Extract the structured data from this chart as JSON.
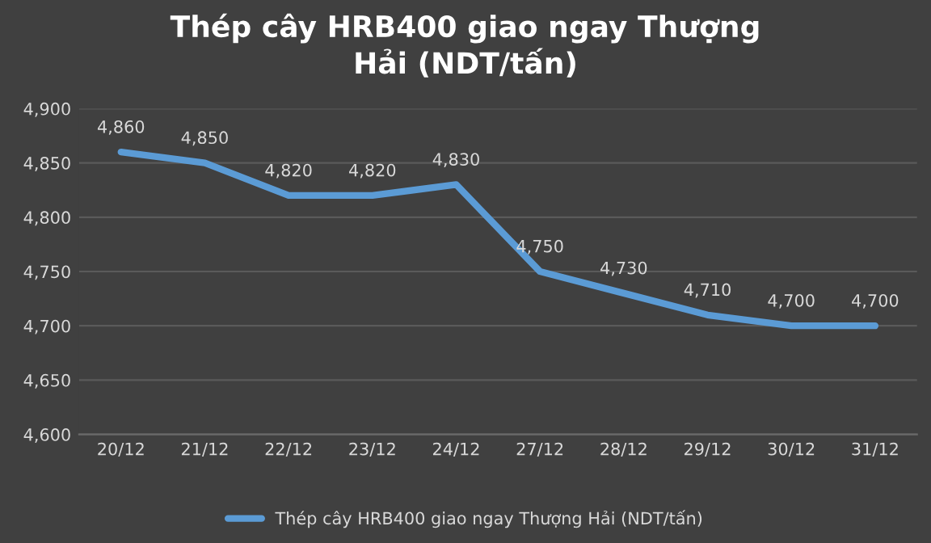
{
  "chart_data": {
    "type": "line",
    "title": "Thép cây HRB400 giao ngay Thượng\nHải (NDT/tấn)",
    "categories": [
      "20/12",
      "21/12",
      "22/12",
      "23/12",
      "24/12",
      "27/12",
      "28/12",
      "29/12",
      "30/12",
      "31/12"
    ],
    "series": [
      {
        "name": "Thép cây HRB400 giao ngay Thượng Hải (NDT/tấn)",
        "color": "#5b9bd5",
        "values": [
          4860,
          4850,
          4820,
          4820,
          4830,
          4750,
          4730,
          4710,
          4700,
          4700
        ]
      }
    ],
    "value_labels": [
      "4,860",
      "4,850",
      "4,820",
      "4,820",
      "4,830",
      "4,750",
      "4,730",
      "4,710",
      "4,700",
      "4,700"
    ],
    "ylim": [
      4600,
      4900
    ],
    "yticks": [
      {
        "value": 4600,
        "label": "4,600"
      },
      {
        "value": 4650,
        "label": "4,650"
      },
      {
        "value": 4700,
        "label": "4,700"
      },
      {
        "value": 4750,
        "label": "4,750"
      },
      {
        "value": 4800,
        "label": "4,800"
      },
      {
        "value": 4850,
        "label": "4,850"
      },
      {
        "value": 4900,
        "label": "4,900"
      }
    ],
    "grid": "y",
    "legend": "bottom",
    "marker": "none",
    "line_style": "solid"
  }
}
